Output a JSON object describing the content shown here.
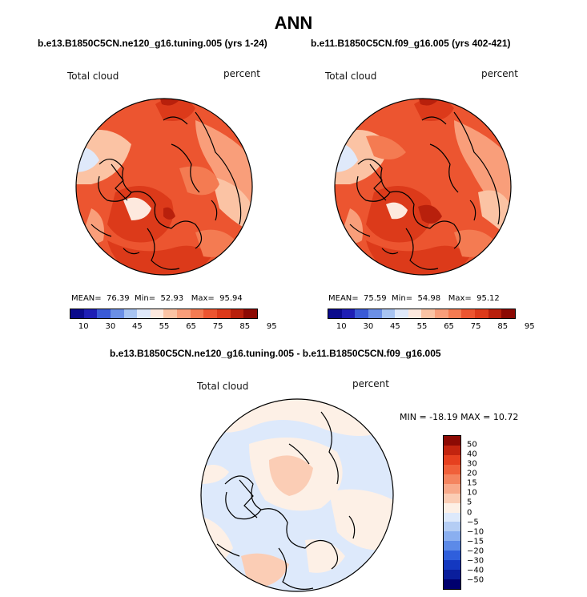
{
  "title": "ANN",
  "left_panel": {
    "subtitle": "b.e13.B1850C5CN.ne120_g16.tuning.005 (yrs 1-24)",
    "left_label": "Total cloud",
    "right_label": "percent",
    "stats": {
      "mean_label": "MEAN=",
      "mean": "76.39",
      "min_label": "Min=",
      "min": "52.93",
      "max_label": "Max=",
      "max": "95.94"
    },
    "colorbar": {
      "colors": [
        "#0a0a8c",
        "#1e1eb4",
        "#3a5ad6",
        "#6b8fe6",
        "#a8c4f2",
        "#dfe9fa",
        "#fde9de",
        "#fbc3a4",
        "#f99e7a",
        "#f47b52",
        "#ec5530",
        "#dc3a1a",
        "#b8200c",
        "#8c0a04"
      ],
      "ticks": [
        "10",
        "30",
        "45",
        "55",
        "65",
        "75",
        "85",
        "95"
      ]
    }
  },
  "right_panel": {
    "subtitle": "b.e11.B1850C5CN.f09_g16.005 (yrs 402-421)",
    "left_label": "Total cloud",
    "right_label": "percent",
    "stats": {
      "mean_label": "MEAN=",
      "mean": "75.59",
      "min_label": "Min=",
      "min": "54.98",
      "max_label": "Max=",
      "max": "95.12"
    },
    "colorbar": {
      "colors": [
        "#0a0a8c",
        "#1e1eb4",
        "#3a5ad6",
        "#6b8fe6",
        "#a8c4f2",
        "#dfe9fa",
        "#fde9de",
        "#fbc3a4",
        "#f99e7a",
        "#f47b52",
        "#ec5530",
        "#dc3a1a",
        "#b8200c",
        "#8c0a04"
      ],
      "ticks": [
        "10",
        "30",
        "45",
        "55",
        "65",
        "75",
        "85",
        "95"
      ]
    }
  },
  "diff_panel": {
    "subtitle": "b.e13.B1850C5CN.ne120_g16.tuning.005 - b.e11.B1850C5CN.f09_g16.005",
    "left_label": "Total cloud",
    "right_label": "percent",
    "minmax": "MIN = -18.19 MAX =  10.72",
    "colorbar": {
      "colors": [
        "#8c0a04",
        "#c2240f",
        "#e6401f",
        "#f0603a",
        "#f4845f",
        "#f8a98a",
        "#fbcdb5",
        "#fdf0e6",
        "#dde9fb",
        "#b4cdf4",
        "#8aaff0",
        "#5c8ae8",
        "#2f5fdc",
        "#1438c0",
        "#0a1e9c",
        "#00006e"
      ],
      "ticks": [
        "50",
        "40",
        "30",
        "20",
        "15",
        "10",
        "5",
        "0",
        "−5",
        "−10",
        "−15",
        "−20",
        "−30",
        "−40",
        "−50"
      ]
    }
  },
  "map_colors": {
    "high_dark": "#b8200c",
    "high": "#dc3a1a",
    "mid_high": "#ec5530",
    "mid": "#f47b52",
    "low_mid": "#f99e7a",
    "low": "#fbc3a4",
    "pale": "#fde9de",
    "blue_pale": "#dfe9fa",
    "blue_light": "#a8c4f2",
    "diff_pos": "#fbcdb5",
    "diff_neutral": "#fdf0e6",
    "diff_neg": "#dde9fb"
  }
}
